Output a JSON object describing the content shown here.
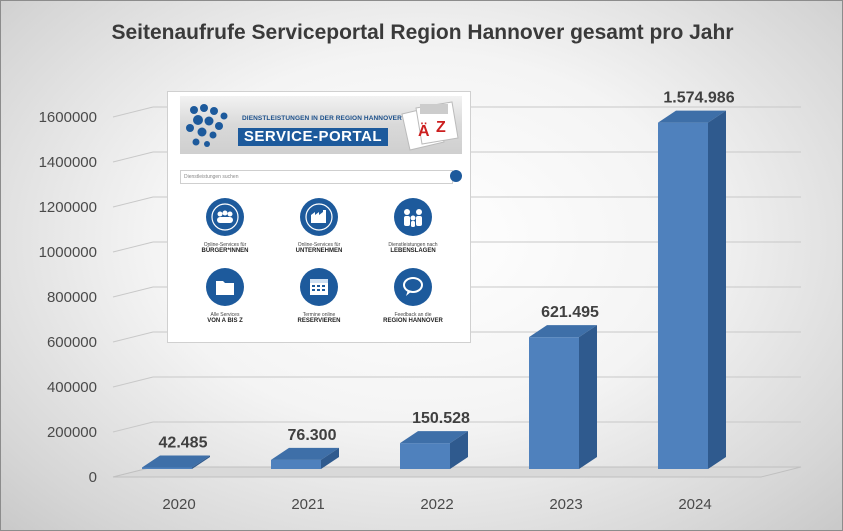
{
  "chart_data": {
    "type": "bar",
    "title": "Seitenaufrufe Serviceportal Region Hannover gesamt pro Jahr",
    "categories": [
      "2020",
      "2021",
      "2022",
      "2023",
      "2024"
    ],
    "values": [
      42485,
      76300,
      150528,
      621495,
      1574986
    ],
    "value_labels": [
      "42.485",
      "76.300",
      "150.528",
      "621.495",
      "1.574.986"
    ],
    "y_ticks": [
      "0",
      "200000",
      "400000",
      "600000",
      "800000",
      "1000000",
      "1200000",
      "1400000",
      "1600000"
    ],
    "ylim": [
      0,
      1600000
    ],
    "grid": true,
    "legend": "none",
    "bar_color": "#4f81bd",
    "xlabel": "",
    "ylabel": ""
  },
  "inset": {
    "subtitle": "DIENSTLEISTUNGEN IN DER REGION HANNOVER",
    "title": "SERVICE-PORTAL",
    "search_placeholder": "Dienstleistungen suchen",
    "services": [
      {
        "line1": "Online-Services für",
        "line2": "BÜRGER*INNEN",
        "icon": "people-icon"
      },
      {
        "line1": "Online-Services für",
        "line2": "UNTERNEHMEN",
        "icon": "factory-icon"
      },
      {
        "line1": "Dienstleistungen nach",
        "line2": "LEBENSLAGEN",
        "icon": "family-icon"
      },
      {
        "line1": "Alle Services",
        "line2": "VON A BIS Z",
        "icon": "folder-icon"
      },
      {
        "line1": "Termine online",
        "line2": "RESERVIEREN",
        "icon": "calendar-icon"
      },
      {
        "line1": "Feedback an die",
        "line2": "REGION HANNOVER",
        "icon": "speech-bubble-icon"
      }
    ],
    "accent_color": "#1d5a9c"
  }
}
